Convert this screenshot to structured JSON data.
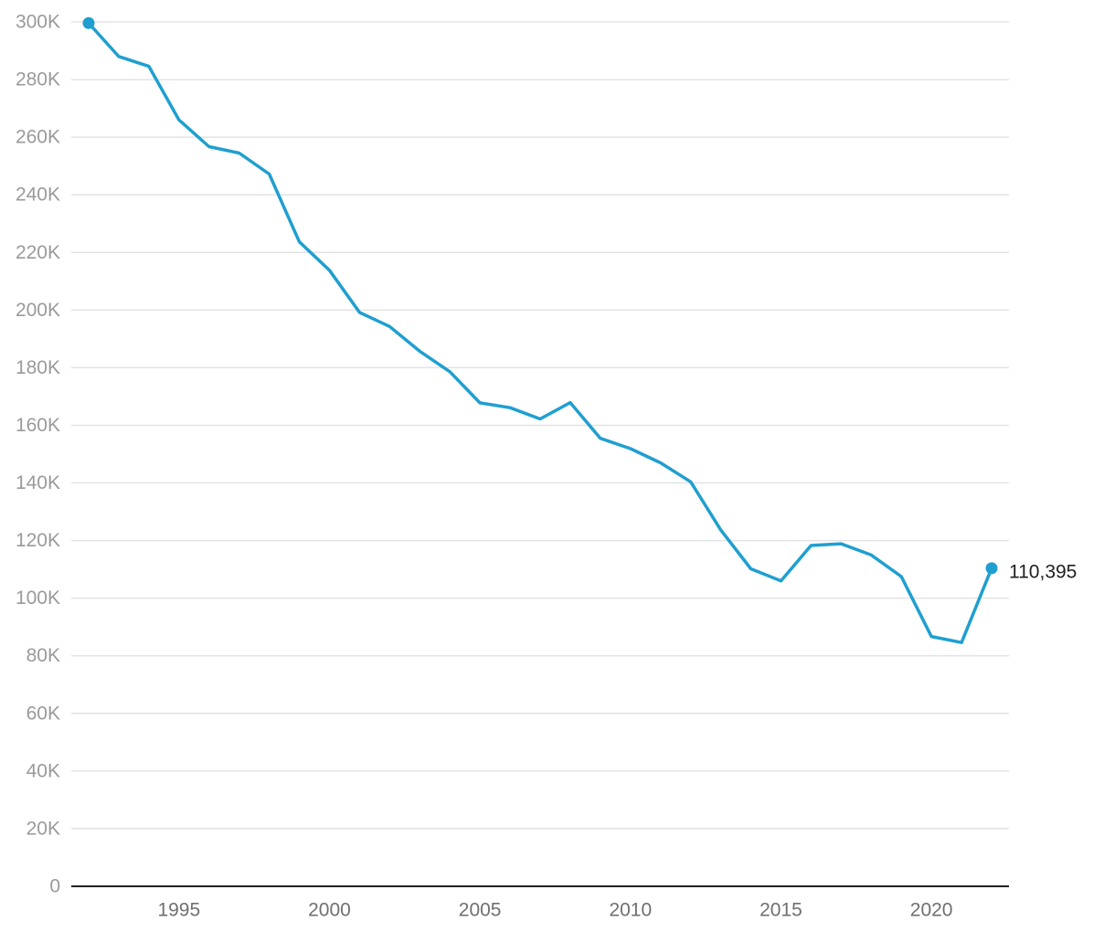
{
  "chart_data": {
    "type": "line",
    "title": "",
    "xlabel": "",
    "ylabel": "",
    "color": "#1f9fd0",
    "grid": true,
    "ylim": [
      0,
      300000
    ],
    "xlim": [
      1992,
      2022
    ],
    "y_ticks": [
      {
        "value": 0,
        "label": "0"
      },
      {
        "value": 20000,
        "label": "20K"
      },
      {
        "value": 40000,
        "label": "40K"
      },
      {
        "value": 60000,
        "label": "60K"
      },
      {
        "value": 80000,
        "label": "80K"
      },
      {
        "value": 100000,
        "label": "100K"
      },
      {
        "value": 120000,
        "label": "120K"
      },
      {
        "value": 140000,
        "label": "140K"
      },
      {
        "value": 160000,
        "label": "160K"
      },
      {
        "value": 180000,
        "label": "180K"
      },
      {
        "value": 200000,
        "label": "200K"
      },
      {
        "value": 220000,
        "label": "220K"
      },
      {
        "value": 240000,
        "label": "240K"
      },
      {
        "value": 260000,
        "label": "260K"
      },
      {
        "value": 280000,
        "label": "280K"
      },
      {
        "value": 300000,
        "label": "300K"
      }
    ],
    "x_ticks": [
      {
        "value": 1995,
        "label": "1995"
      },
      {
        "value": 2000,
        "label": "2000"
      },
      {
        "value": 2005,
        "label": "2005"
      },
      {
        "value": 2010,
        "label": "2010"
      },
      {
        "value": 2015,
        "label": "2015"
      },
      {
        "value": 2020,
        "label": "2020"
      }
    ],
    "x": [
      1992,
      1993,
      1994,
      1995,
      1996,
      1997,
      1998,
      1999,
      2000,
      2001,
      2002,
      2003,
      2004,
      2005,
      2006,
      2007,
      2008,
      2009,
      2010,
      2011,
      2012,
      2013,
      2014,
      2015,
      2016,
      2017,
      2018,
      2019,
      2020,
      2021,
      2022
    ],
    "values": [
      299600,
      288000,
      284600,
      266000,
      256700,
      254500,
      247200,
      223700,
      213800,
      199200,
      194300,
      185700,
      178600,
      167800,
      166100,
      162200,
      167900,
      155500,
      151900,
      147000,
      140400,
      123700,
      110200,
      106000,
      118300,
      118900,
      115000,
      107500,
      86700,
      84600,
      110395
    ],
    "end_label": "110,395"
  }
}
